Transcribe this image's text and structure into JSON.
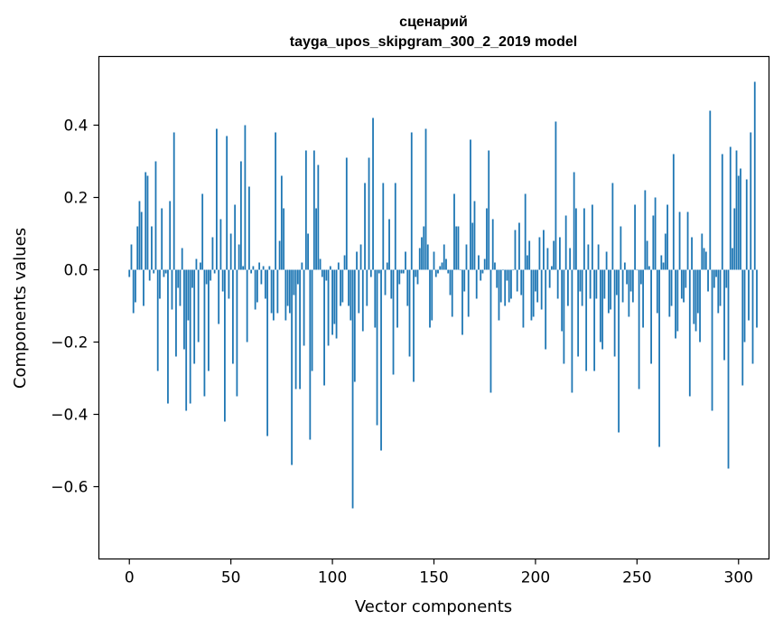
{
  "chart_data": {
    "type": "bar",
    "title_lines": [
      "сценарий",
      "tayga_upos_skipgram_300_2_2019 model"
    ],
    "xlabel": "Vector components",
    "ylabel": "Components values",
    "xlim": [
      -15,
      315
    ],
    "ylim": [
      -0.8,
      0.59
    ],
    "xticks": [
      0,
      50,
      100,
      150,
      200,
      250,
      300
    ],
    "yticks": [
      -0.6,
      -0.4,
      -0.2,
      0.0,
      0.2,
      0.4
    ],
    "ytick_labels": [
      "−0.6",
      "−0.4",
      "−0.2",
      "0.0",
      "0.2",
      "0.4"
    ],
    "grid": false,
    "bar_color": "#1f77b4",
    "values": [
      -0.02,
      0.07,
      -0.12,
      -0.09,
      0.12,
      0.19,
      0.16,
      -0.1,
      0.27,
      0.26,
      -0.03,
      0.12,
      -0.01,
      0.3,
      -0.28,
      -0.08,
      0.17,
      -0.02,
      -0.01,
      -0.37,
      0.19,
      -0.11,
      0.38,
      -0.24,
      -0.05,
      -0.1,
      0.06,
      -0.22,
      -0.39,
      -0.14,
      -0.37,
      -0.05,
      -0.26,
      0.03,
      -0.2,
      0.02,
      0.21,
      -0.35,
      -0.04,
      -0.28,
      -0.03,
      0.09,
      -0.01,
      0.39,
      -0.15,
      0.14,
      -0.06,
      -0.42,
      0.37,
      -0.08,
      0.1,
      -0.26,
      0.18,
      -0.35,
      0.07,
      0.3,
      0.01,
      0.4,
      -0.2,
      0.23,
      -0.01,
      0.01,
      -0.11,
      -0.09,
      0.02,
      -0.04,
      0.01,
      -0.08,
      -0.46,
      0.01,
      -0.12,
      -0.14,
      0.38,
      -0.12,
      0.08,
      0.26,
      0.17,
      -0.14,
      -0.1,
      -0.12,
      -0.54,
      -0.07,
      -0.33,
      -0.04,
      -0.33,
      0.02,
      -0.21,
      0.33,
      0.1,
      -0.47,
      -0.28,
      0.33,
      0.17,
      0.29,
      0.03,
      -0.02,
      -0.32,
      -0.03,
      -0.21,
      0.01,
      -0.18,
      -0.15,
      -0.19,
      0.02,
      -0.1,
      -0.09,
      0.04,
      0.31,
      -0.1,
      -0.14,
      -0.66,
      -0.31,
      0.05,
      -0.12,
      0.07,
      -0.17,
      0.24,
      -0.1,
      0.31,
      -0.02,
      0.42,
      -0.16,
      -0.43,
      -0.01,
      -0.5,
      0.24,
      -0.07,
      0.02,
      0.14,
      -0.08,
      -0.29,
      0.24,
      -0.16,
      -0.04,
      -0.01,
      -0.01,
      0.05,
      -0.1,
      -0.24,
      0.38,
      -0.31,
      -0.02,
      -0.04,
      0.06,
      0.09,
      0.12,
      0.39,
      0.07,
      -0.16,
      -0.14,
      0.05,
      -0.02,
      -0.01,
      0.01,
      0.02,
      0.07,
      0.03,
      -0.01,
      -0.07,
      -0.13,
      0.21,
      0.12,
      0.12,
      0.0,
      -0.18,
      -0.06,
      0.07,
      -0.13,
      0.36,
      0.13,
      0.19,
      -0.08,
      0.04,
      -0.03,
      -0.01,
      0.03,
      0.17,
      0.33,
      -0.34,
      0.14,
      0.02,
      -0.05,
      -0.14,
      -0.09,
      0.0,
      -0.1,
      -0.03,
      -0.09,
      -0.08,
      0.0,
      0.11,
      -0.06,
      0.13,
      -0.07,
      -0.16,
      0.21,
      0.04,
      0.08,
      -0.14,
      -0.13,
      -0.06,
      -0.09,
      0.09,
      -0.11,
      0.11,
      -0.22,
      0.06,
      -0.05,
      0.01,
      0.08,
      0.41,
      -0.08,
      0.09,
      -0.17,
      -0.26,
      0.15,
      -0.1,
      0.06,
      -0.34,
      0.27,
      0.17,
      -0.24,
      -0.06,
      -0.1,
      0.17,
      -0.28,
      0.07,
      -0.08,
      0.18,
      -0.28,
      -0.08,
      0.07,
      -0.2,
      -0.22,
      -0.08,
      0.05,
      -0.12,
      -0.11,
      0.24,
      -0.24,
      -0.07,
      -0.45,
      0.12,
      -0.09,
      0.02,
      -0.04,
      -0.13,
      -0.06,
      -0.09,
      0.18,
      0.0,
      -0.33,
      -0.04,
      -0.16,
      0.22,
      0.08,
      0.01,
      -0.26,
      0.15,
      0.2,
      -0.12,
      -0.49,
      0.04,
      0.02,
      0.1,
      0.18,
      -0.13,
      -0.1,
      0.32,
      -0.19,
      -0.17,
      0.16,
      -0.08,
      -0.09,
      -0.05,
      0.16,
      -0.35,
      0.09,
      -0.15,
      -0.17,
      -0.12,
      -0.2,
      0.1,
      0.06,
      0.05,
      -0.06,
      0.44,
      -0.39,
      -0.05,
      -0.02,
      -0.12,
      -0.1,
      0.32,
      -0.25,
      -0.05,
      -0.55,
      0.34,
      0.06,
      0.17,
      0.33,
      0.26,
      0.28,
      -0.32,
      -0.2,
      0.25,
      -0.14,
      0.38,
      -0.26,
      0.52,
      -0.16
    ]
  }
}
